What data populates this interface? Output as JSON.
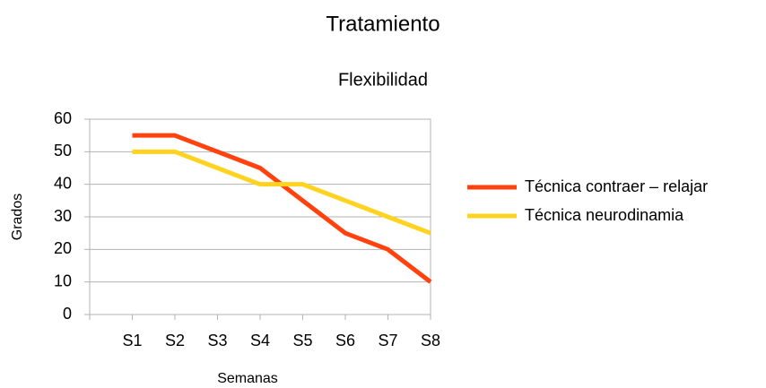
{
  "chart_data": {
    "type": "line",
    "title": "Tratamiento",
    "subtitle": "Flexibilidad",
    "x_label": "Semanas",
    "y_label": "Grados",
    "categories": [
      "S1",
      "S2",
      "S3",
      "S4",
      "S5",
      "S6",
      "S7",
      "S8"
    ],
    "series": [
      {
        "name": "Técnica contraer – relajar",
        "color": "#ff420e",
        "values": [
          55,
          55,
          50,
          45,
          35,
          25,
          20,
          10
        ]
      },
      {
        "name": "Técnica neurodinamia",
        "color": "#ffd320",
        "values": [
          50,
          50,
          45,
          40,
          40,
          35,
          30,
          25
        ]
      }
    ],
    "ylim": [
      0,
      60
    ],
    "yticks": [
      0,
      10,
      20,
      30,
      40,
      50,
      60
    ],
    "grid": true,
    "legend": "right"
  }
}
